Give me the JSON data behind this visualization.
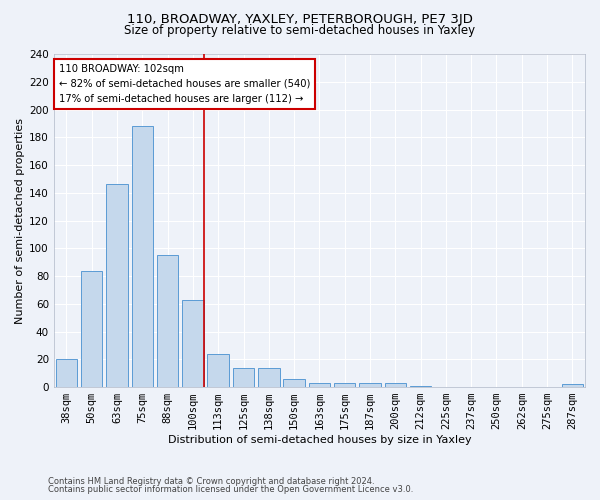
{
  "title": "110, BROADWAY, YAXLEY, PETERBOROUGH, PE7 3JD",
  "subtitle": "Size of property relative to semi-detached houses in Yaxley",
  "xlabel": "Distribution of semi-detached houses by size in Yaxley",
  "ylabel": "Number of semi-detached properties",
  "categories": [
    "38sqm",
    "50sqm",
    "63sqm",
    "75sqm",
    "88sqm",
    "100sqm",
    "113sqm",
    "125sqm",
    "138sqm",
    "150sqm",
    "163sqm",
    "175sqm",
    "187sqm",
    "200sqm",
    "212sqm",
    "225sqm",
    "237sqm",
    "250sqm",
    "262sqm",
    "275sqm",
    "287sqm"
  ],
  "values": [
    20,
    84,
    146,
    188,
    95,
    63,
    24,
    14,
    14,
    6,
    3,
    3,
    3,
    3,
    1,
    0,
    0,
    0,
    0,
    0,
    2
  ],
  "bar_color": "#c5d8ec",
  "bar_edge_color": "#5b9bd5",
  "annotation_title": "110 BROADWAY: 102sqm",
  "annotation_line1": "← 82% of semi-detached houses are smaller (540)",
  "annotation_line2": "17% of semi-detached houses are larger (112) →",
  "annotation_box_color": "#ffffff",
  "annotation_box_edge_color": "#cc0000",
  "vline_color": "#cc0000",
  "ylim": [
    0,
    240
  ],
  "yticks": [
    0,
    20,
    40,
    60,
    80,
    100,
    120,
    140,
    160,
    180,
    200,
    220,
    240
  ],
  "footer1": "Contains HM Land Registry data © Crown copyright and database right 2024.",
  "footer2": "Contains public sector information licensed under the Open Government Licence v3.0.",
  "bg_color": "#eef2f9",
  "grid_color": "#ffffff",
  "title_fontsize": 9.5,
  "subtitle_fontsize": 8.5,
  "axis_label_fontsize": 8,
  "tick_fontsize": 7.5,
  "footer_fontsize": 6.0,
  "vline_x_index": 5,
  "vline_x_offset": 0.42
}
